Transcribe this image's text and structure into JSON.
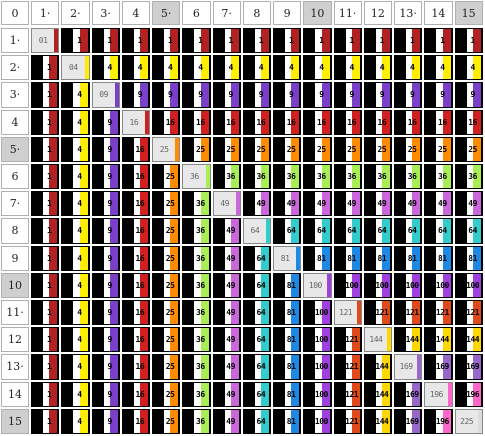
{
  "corner": "0",
  "col_headers": [
    "1·",
    "2·",
    "3·",
    "4",
    "5·",
    "6",
    "7·",
    "8",
    "9",
    "10",
    "11·",
    "12",
    "13·",
    "14",
    "15"
  ],
  "row_headers": [
    "1·",
    "2·",
    "3·",
    "4",
    "5·",
    "6",
    "7·",
    "8",
    "9",
    "10",
    "11·",
    "12",
    "13·",
    "14",
    "15"
  ],
  "highlighted_cols": [
    5,
    10,
    15
  ],
  "highlighted_rows": [
    5,
    10,
    15
  ],
  "colors": {
    "c1": "#b22222",
    "c4": "#ffee00",
    "c9": "#7b3fc9",
    "c16": "#d21f1f",
    "c25": "#ff8c00",
    "c36": "#aaee55",
    "c49": "#cc66dd",
    "c64": "#33cccc",
    "c81": "#1e88e5",
    "c100": "#a040e0",
    "c121": "#e04a1a",
    "c144": "#ffd700",
    "c169": "#9966cc",
    "c196": "#ff66cc",
    "c225": "#dddddd",
    "diag_bg": "#ffffff"
  },
  "cells": [
    [
      "01",
      "1",
      "1",
      "1",
      "1",
      "1",
      "1",
      "1",
      "1",
      "1",
      "1",
      "1",
      "1",
      "1",
      "1"
    ],
    [
      "1",
      "04",
      "4",
      "4",
      "4",
      "4",
      "4",
      "4",
      "4",
      "4",
      "4",
      "4",
      "4",
      "4",
      "4"
    ],
    [
      "1",
      "4",
      "09",
      "9",
      "9",
      "9",
      "9",
      "9",
      "9",
      "9",
      "9",
      "9",
      "9",
      "9",
      "9"
    ],
    [
      "1",
      "4",
      "9",
      "16",
      "16",
      "16",
      "16",
      "16",
      "16",
      "16",
      "16",
      "16",
      "16",
      "16",
      "16"
    ],
    [
      "1",
      "4",
      "9",
      "16",
      "25",
      "25",
      "25",
      "25",
      "25",
      "25",
      "25",
      "25",
      "25",
      "25",
      "25"
    ],
    [
      "1",
      "4",
      "9",
      "16",
      "25",
      "36",
      "36",
      "36",
      "36",
      "36",
      "36",
      "36",
      "36",
      "36",
      "36"
    ],
    [
      "1",
      "4",
      "9",
      "16",
      "25",
      "36",
      "49",
      "49",
      "49",
      "49",
      "49",
      "49",
      "49",
      "49",
      "49"
    ],
    [
      "1",
      "4",
      "9",
      "16",
      "25",
      "36",
      "49",
      "64",
      "64",
      "64",
      "64",
      "64",
      "64",
      "64",
      "64"
    ],
    [
      "1",
      "4",
      "9",
      "16",
      "25",
      "36",
      "49",
      "64",
      "81",
      "81",
      "81",
      "81",
      "81",
      "81",
      "81"
    ],
    [
      "1",
      "4",
      "9",
      "16",
      "25",
      "36",
      "49",
      "64",
      "81",
      "100",
      "100",
      "100",
      "100",
      "100",
      "100"
    ],
    [
      "1",
      "4",
      "9",
      "16",
      "25",
      "36",
      "49",
      "64",
      "81",
      "100",
      "121",
      "121",
      "121",
      "121",
      "121"
    ],
    [
      "1",
      "4",
      "9",
      "16",
      "25",
      "36",
      "49",
      "64",
      "81",
      "100",
      "121",
      "144",
      "144",
      "144",
      "144"
    ],
    [
      "1",
      "4",
      "9",
      "16",
      "25",
      "36",
      "49",
      "64",
      "81",
      "100",
      "121",
      "144",
      "169",
      "169",
      "169"
    ],
    [
      "1",
      "4",
      "9",
      "16",
      "25",
      "36",
      "49",
      "64",
      "81",
      "100",
      "121",
      "144",
      "169",
      "196",
      "196"
    ],
    [
      "1",
      "4",
      "9",
      "16",
      "25",
      "36",
      "49",
      "64",
      "81",
      "100",
      "121",
      "144",
      "169",
      "196",
      "225"
    ]
  ]
}
